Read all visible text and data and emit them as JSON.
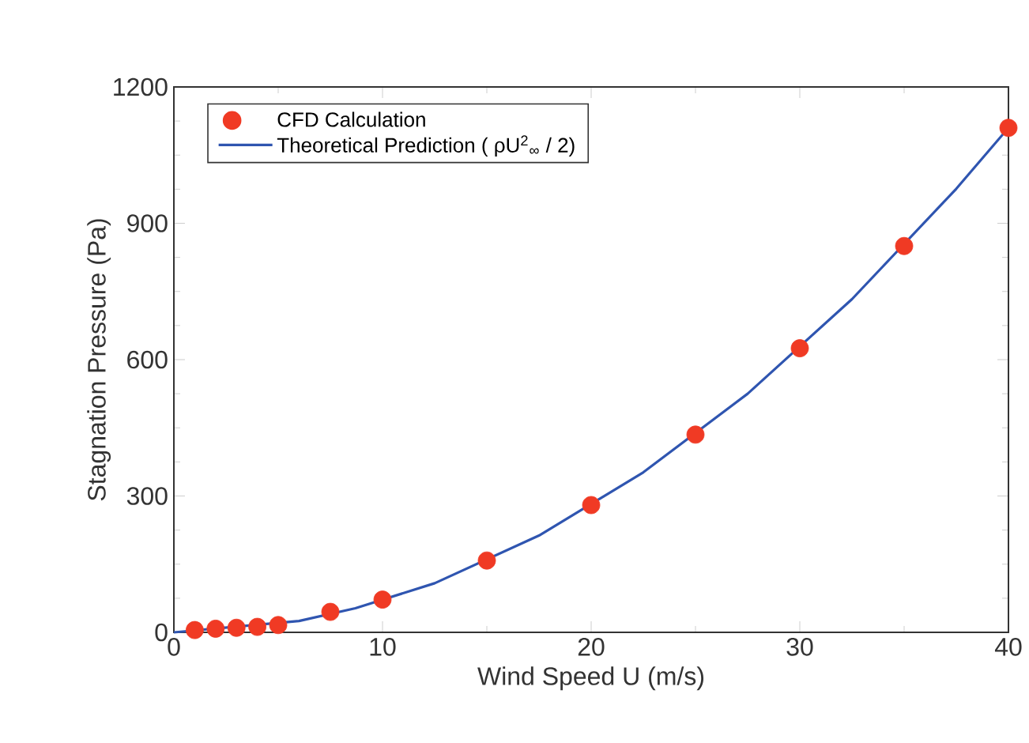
{
  "chart_data": {
    "type": "scatter",
    "xlabel": "Wind Speed  U   (m/s)",
    "ylabel": "Stagnation Pressure (Pa)",
    "xlim": [
      0,
      40
    ],
    "xticks": [
      0,
      10,
      20,
      30,
      40
    ],
    "ylim": [
      0,
      1200
    ],
    "yticks": [
      0,
      300,
      600,
      900,
      1200
    ],
    "legend": "top left",
    "grid": false,
    "series": [
      {
        "name": "CFD Calculation",
        "marker": "circle",
        "color": "#f03a24",
        "x": [
          1,
          2,
          3,
          4,
          5,
          7.5,
          10,
          15,
          20,
          25,
          30,
          35,
          40
        ],
        "values": [
          5,
          8,
          10,
          12,
          16,
          45,
          72,
          158,
          280,
          435,
          625,
          850,
          1110
        ]
      },
      {
        "name": "Theoretical Prediction ( ρU$^{2}$$_{∞}$ / 2)",
        "type": "line",
        "marker": "none",
        "line_style": "solid",
        "color": "#2f55b0",
        "x": [
          0,
          6,
          8.7,
          12.5,
          17.5,
          22.5,
          27.5,
          32.5,
          37.5,
          40
        ],
        "values": [
          0,
          25,
          53,
          108,
          213,
          352,
          525,
          733,
          976,
          1110
        ]
      }
    ]
  }
}
